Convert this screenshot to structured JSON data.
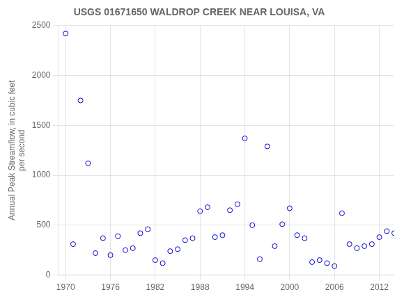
{
  "chart_data": {
    "type": "scatter",
    "title": "USGS 01671650 WALDROP CREEK NEAR LOUISA, VA",
    "y_label": "Annual Peak Streamflow, in cubic feet\nper second",
    "x": [
      1970,
      1971,
      1972,
      1973,
      1974,
      1975,
      1976,
      1977,
      1978,
      1979,
      1980,
      1981,
      1982,
      1983,
      1984,
      1985,
      1986,
      1987,
      1988,
      1989,
      1990,
      1991,
      1992,
      1993,
      1994,
      1995,
      1996,
      1997,
      1998,
      1999,
      2000,
      2001,
      2002,
      2003,
      2004,
      2005,
      2006,
      2007,
      2008,
      2009,
      2010,
      2011,
      2012,
      2013,
      2014
    ],
    "values": [
      2420,
      310,
      1750,
      1120,
      220,
      370,
      200,
      390,
      250,
      270,
      420,
      460,
      150,
      120,
      240,
      260,
      350,
      370,
      640,
      680,
      380,
      400,
      650,
      710,
      1370,
      500,
      160,
      1290,
      290,
      510,
      670,
      400,
      370,
      130,
      150,
      120,
      90,
      620,
      310,
      270,
      290,
      310,
      380,
      440,
      420
    ],
    "color": "#0000CC",
    "marker": "circle",
    "xlim": [
      1969,
      2014
    ],
    "ylim": [
      0,
      2500
    ],
    "xticks": [
      1970,
      1976,
      1982,
      1988,
      1994,
      2000,
      2006,
      2012
    ],
    "yticks": [
      0,
      500,
      1000,
      1500,
      2000,
      2500
    ],
    "grid": true
  }
}
